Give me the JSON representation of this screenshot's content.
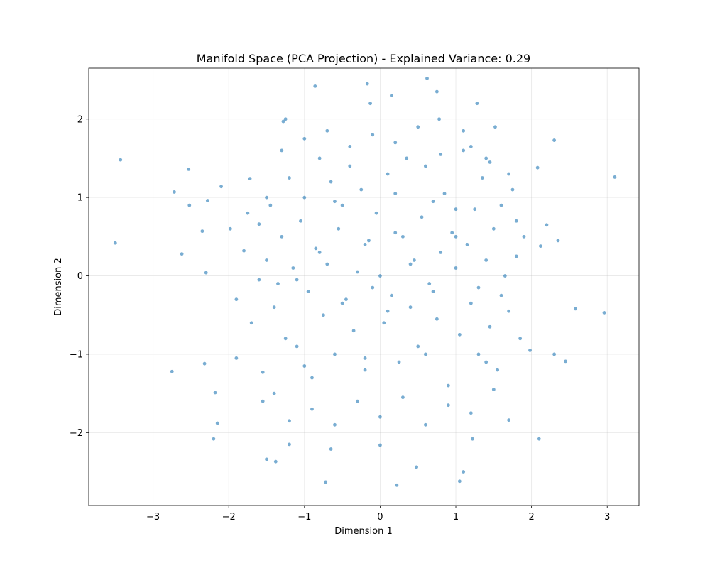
{
  "chart_data": {
    "type": "scatter",
    "title": "Manifold Space (PCA Projection) - Explained Variance: 0.29",
    "xlabel": "Dimension 1",
    "ylabel": "Dimension 2",
    "xlim": [
      -3.85,
      3.42
    ],
    "ylim": [
      -2.93,
      2.65
    ],
    "xticks": [
      -3,
      -2,
      -1,
      0,
      1,
      2,
      3
    ],
    "yticks": [
      -2,
      -1,
      0,
      1,
      2
    ],
    "xtick_labels": [
      "−3",
      "−2",
      "−1",
      "0",
      "1",
      "2",
      "3"
    ],
    "ytick_labels": [
      "−2",
      "−1",
      "0",
      "1",
      "2"
    ],
    "grid": true,
    "point_color": "#1f77b4",
    "point_alpha": 0.6,
    "series": [
      {
        "x": [
          -3.5,
          -3.43,
          -2.75,
          -2.72,
          -2.62,
          -2.53,
          -2.52,
          -2.35,
          -2.32,
          -2.28,
          -2.2,
          -2.18,
          -2.1,
          -1.98,
          -1.9,
          -1.72,
          -1.5,
          -1.28,
          -1.25,
          -0.86,
          -0.72,
          -0.17,
          -0.13,
          0.15,
          0.62,
          0.75,
          0.78,
          1.22,
          1.28,
          1.45,
          1.52,
          1.98,
          2.1,
          2.2,
          2.3,
          2.35,
          2.58,
          2.96,
          3.1,
          -2.3,
          -2.15,
          -1.55,
          -1.38,
          -1.2,
          -0.65,
          0.0,
          0.22,
          0.48,
          1.05,
          1.1,
          1.2,
          1.7,
          2.08,
          2.12,
          2.3,
          2.45,
          -1.9,
          -1.8,
          -1.75,
          -1.7,
          -1.6,
          -1.55,
          -1.5,
          -1.45,
          -1.4,
          -1.35,
          -1.3,
          -1.25,
          -1.2,
          -1.15,
          -1.1,
          -1.05,
          -1.0,
          -0.95,
          -0.9,
          -0.85,
          -0.8,
          -0.75,
          -0.7,
          -0.65,
          -0.6,
          -0.55,
          -0.5,
          -0.45,
          -0.4,
          -0.35,
          -0.3,
          -0.25,
          -0.2,
          -0.15,
          -0.1,
          -0.05,
          0.0,
          0.05,
          0.1,
          0.15,
          0.2,
          0.25,
          0.3,
          0.35,
          0.4,
          0.45,
          0.5,
          0.55,
          0.6,
          0.65,
          0.7,
          0.75,
          0.8,
          0.85,
          0.9,
          0.95,
          1.0,
          1.05,
          1.1,
          1.15,
          1.2,
          1.25,
          1.3,
          1.35,
          1.4,
          1.45,
          1.5,
          1.55,
          1.6,
          1.65,
          1.7,
          1.75,
          1.8,
          1.85,
          1.9,
          -1.4,
          -1.2,
          -0.9,
          -0.6,
          -0.3,
          0.0,
          0.3,
          0.6,
          0.9,
          1.2,
          1.5,
          -1.3,
          -1.0,
          -0.7,
          -0.4,
          -0.1,
          0.2,
          0.5,
          0.8,
          1.1,
          1.4,
          1.7,
          -1.6,
          -1.1,
          -0.8,
          -0.5,
          -0.2,
          0.1,
          0.4,
          0.7,
          1.0,
          1.3,
          1.6,
          -1.5,
          -1.0,
          -0.6,
          -0.2,
          0.2,
          0.6,
          1.0,
          1.4,
          1.8
        ],
        "y": [
          0.42,
          1.48,
          -1.22,
          1.07,
          0.28,
          1.36,
          0.9,
          0.57,
          -1.12,
          0.96,
          -2.08,
          -1.49,
          1.14,
          0.6,
          -1.05,
          1.24,
          -2.34,
          1.97,
          2.0,
          2.42,
          -2.63,
          2.45,
          2.2,
          2.3,
          2.52,
          2.35,
          2.0,
          -2.08,
          2.2,
          1.45,
          1.9,
          -0.95,
          -2.08,
          0.65,
          1.73,
          0.45,
          -0.42,
          -0.47,
          1.26,
          0.04,
          -1.88,
          -1.6,
          -2.37,
          -2.15,
          -2.21,
          -2.16,
          -2.67,
          -2.44,
          -2.62,
          -2.5,
          1.65,
          -1.84,
          1.38,
          0.38,
          -1.0,
          -1.09,
          -0.3,
          0.32,
          0.8,
          -0.6,
          0.66,
          -1.23,
          0.2,
          0.9,
          -0.4,
          -0.1,
          0.5,
          -0.8,
          1.25,
          0.1,
          -0.9,
          0.7,
          1.0,
          -0.2,
          -1.3,
          0.35,
          1.5,
          -0.5,
          0.15,
          1.2,
          -1.0,
          0.6,
          0.9,
          -0.3,
          1.4,
          -0.7,
          0.05,
          1.1,
          -1.2,
          0.45,
          -0.15,
          0.8,
          0.0,
          -0.6,
          1.3,
          -0.25,
          0.55,
          -1.1,
          0.5,
          1.5,
          -0.4,
          0.2,
          -0.9,
          0.75,
          1.4,
          -0.1,
          0.95,
          -0.55,
          0.3,
          1.05,
          -1.4,
          0.55,
          0.1,
          -0.75,
          1.6,
          0.4,
          -0.35,
          0.85,
          -1.0,
          1.25,
          0.2,
          -0.65,
          0.6,
          -1.2,
          0.9,
          0.0,
          -0.45,
          1.1,
          0.25,
          -0.8,
          0.5,
          -1.5,
          -1.85,
          -1.7,
          -1.9,
          -1.6,
          -1.8,
          -1.55,
          -1.9,
          -1.65,
          -1.75,
          -1.45,
          1.6,
          1.75,
          1.85,
          1.65,
          1.8,
          1.7,
          1.9,
          1.55,
          1.85,
          1.5,
          1.3,
          -0.05,
          -0.05,
          0.3,
          -0.35,
          0.4,
          -0.45,
          0.15,
          -0.2,
          0.5,
          -0.15,
          -0.25,
          1.0,
          -1.15,
          0.95,
          -1.05,
          1.05,
          -1.0,
          0.85,
          -1.1,
          0.7
        ]
      }
    ]
  }
}
